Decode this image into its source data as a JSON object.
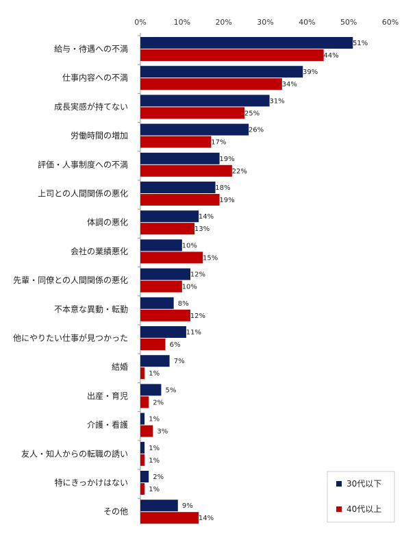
{
  "chart_data": {
    "type": "bar",
    "orientation": "horizontal",
    "categories": [
      "給与・待遇への不満",
      "仕事内容への不満",
      "成長実感が持てない",
      "労働時間の増加",
      "評価・人事制度への不満",
      "上司との人間関係の悪化",
      "体調の悪化",
      "会社の業績悪化",
      "先輩・同僚との人間関係の悪化",
      "不本意な異動・転勤",
      "他にやりたい仕事が見つかった",
      "結婚",
      "出産・育児",
      "介護・看護",
      "友人・知人からの転職の誘い",
      "特にきっかけはない",
      "その他"
    ],
    "series": [
      {
        "name": "30代以下",
        "color": "#0d1f5c",
        "values": [
          51,
          39,
          31,
          26,
          19,
          18,
          14,
          10,
          12,
          8,
          11,
          7,
          5,
          1,
          1,
          2,
          9
        ],
        "labels": [
          "51%",
          "39%",
          "31%",
          "26%",
          "19%",
          "18%",
          "14%",
          "10%",
          "12%",
          "8%",
          "11%",
          "7%",
          "5%",
          "1%",
          "1%",
          "2%",
          "9%"
        ]
      },
      {
        "name": "40代以上",
        "color": "#c00000",
        "values": [
          44,
          34,
          25,
          17,
          22,
          19,
          13,
          15,
          10,
          12,
          6,
          1,
          2,
          3,
          1,
          1,
          14
        ],
        "labels": [
          "44%",
          "34%",
          "25%",
          "17%",
          "22%",
          "19%",
          "13%",
          "15%",
          "10%",
          "12%",
          "6%",
          "1%",
          "2%",
          "3%",
          "1%",
          "1%",
          "14%"
        ]
      }
    ],
    "xlim": [
      0,
      60
    ],
    "ticks": [
      0,
      10,
      20,
      30,
      40,
      50,
      60
    ],
    "tick_labels": [
      "0%",
      "10%",
      "20%",
      "30%",
      "40%",
      "50%",
      "60%"
    ],
    "axis_position": "top",
    "grid": false,
    "legend_position": "bottom-right",
    "title": ""
  }
}
